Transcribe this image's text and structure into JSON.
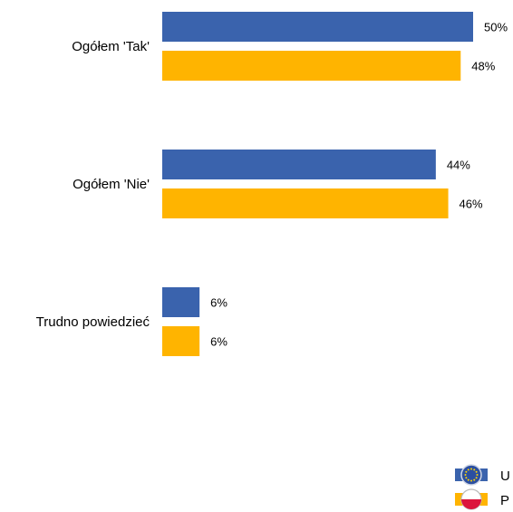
{
  "chart_data": {
    "type": "bar",
    "orientation": "horizontal",
    "categories": [
      "Ogółem 'Tak'",
      "Ogółem 'Nie'",
      "Trudno powiedzieć"
    ],
    "series": [
      {
        "name": "U",
        "values": [
          50,
          44,
          6
        ],
        "labels": [
          "50%",
          "44%",
          "6%"
        ],
        "color": "#3a63ad",
        "icon": "eu-flag-icon"
      },
      {
        "name": "P",
        "values": [
          48,
          46,
          6
        ],
        "labels": [
          "48%",
          "46%",
          "6%"
        ],
        "color": "#ffb400",
        "icon": "poland-flag-icon"
      }
    ],
    "xlim": [
      0,
      50
    ],
    "grid": false,
    "legend_position": "bottom-right"
  }
}
